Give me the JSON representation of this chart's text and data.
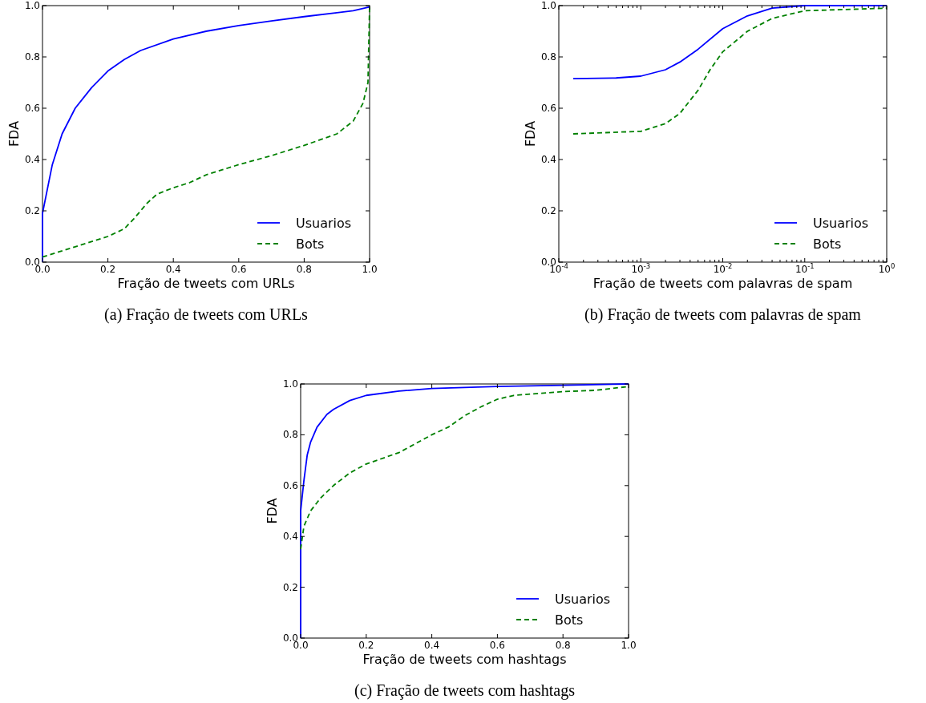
{
  "chart_data": [
    {
      "type": "line",
      "xlabel": "Fração de tweets com URLs",
      "ylabel": "FDA",
      "annotations": [
        "(a) Fração de tweets com URLs"
      ],
      "xlim": [
        0,
        1
      ],
      "ylim": [
        0,
        1
      ],
      "xticks": [
        {
          "value": 0,
          "label": "0.0"
        },
        {
          "value": 0.2,
          "label": "0.2"
        },
        {
          "value": 0.4,
          "label": "0.4"
        },
        {
          "value": 0.6,
          "label": "0.6"
        },
        {
          "value": 0.8,
          "label": "0.8"
        },
        {
          "value": 1,
          "label": "1.0"
        }
      ],
      "yticks": [
        {
          "value": 0,
          "label": "0.0"
        },
        {
          "value": 0.2,
          "label": "0.2"
        },
        {
          "value": 0.4,
          "label": "0.4"
        },
        {
          "value": 0.6,
          "label": "0.6"
        },
        {
          "value": 0.8,
          "label": "0.8"
        },
        {
          "value": 1,
          "label": "1.0"
        }
      ],
      "legend": "bottom right",
      "grid": false,
      "series": [
        {
          "name": "Usuarios",
          "color": "#0000ff",
          "line_style": "solid",
          "x": [
            0,
            0,
            0.03,
            0.06,
            0.1,
            0.15,
            0.2,
            0.25,
            0.3,
            0.4,
            0.5,
            0.6,
            0.7,
            0.8,
            0.9,
            0.95,
            1
          ],
          "values": [
            0,
            0.19,
            0.38,
            0.5,
            0.6,
            0.68,
            0.745,
            0.79,
            0.825,
            0.87,
            0.9,
            0.922,
            0.94,
            0.957,
            0.972,
            0.98,
            0.995
          ]
        },
        {
          "name": "Bots",
          "color": "#008000",
          "line_style": "dashed",
          "x": [
            0,
            0.05,
            0.1,
            0.15,
            0.2,
            0.25,
            0.28,
            0.32,
            0.35,
            0.4,
            0.45,
            0.5,
            0.6,
            0.7,
            0.8,
            0.9,
            0.95,
            0.98,
            0.995,
            1
          ],
          "values": [
            0.02,
            0.04,
            0.06,
            0.08,
            0.1,
            0.13,
            0.17,
            0.23,
            0.265,
            0.29,
            0.31,
            0.34,
            0.38,
            0.415,
            0.455,
            0.5,
            0.55,
            0.62,
            0.7,
            1
          ]
        }
      ]
    },
    {
      "type": "line",
      "xlabel": "Fração de tweets com palavras de spam",
      "ylabel": "FDA",
      "annotations": [
        "(b) Fração de tweets com palavras de spam"
      ],
      "log": "x",
      "xlim": [
        0.0001,
        1
      ],
      "ylim": [
        0,
        1
      ],
      "xticks": [
        {
          "value": 0.0001,
          "label": "10$^{-4}$"
        },
        {
          "value": 0.001,
          "label": "10$^{-3}$"
        },
        {
          "value": 0.01,
          "label": "10$^{-2}$"
        },
        {
          "value": 0.1,
          "label": "10$^{-1}$"
        },
        {
          "value": 1,
          "label": "10$^{0}$"
        }
      ],
      "yticks": [
        {
          "value": 0,
          "label": "0.0"
        },
        {
          "value": 0.2,
          "label": "0.2"
        },
        {
          "value": 0.4,
          "label": "0.4"
        },
        {
          "value": 0.6,
          "label": "0.6"
        },
        {
          "value": 0.8,
          "label": "0.8"
        },
        {
          "value": 1,
          "label": "1.0"
        }
      ],
      "legend": "bottom right",
      "grid": false,
      "series": [
        {
          "name": "Usuarios",
          "color": "#0000ff",
          "line_style": "solid",
          "x": [
            0.00015,
            0.0005,
            0.001,
            0.002,
            0.003,
            0.005,
            0.01,
            0.02,
            0.04,
            0.1,
            1
          ],
          "values": [
            0.715,
            0.718,
            0.725,
            0.75,
            0.78,
            0.83,
            0.91,
            0.96,
            0.99,
            1,
            1
          ]
        },
        {
          "name": "Bots",
          "color": "#008000",
          "line_style": "dashed",
          "x": [
            0.00015,
            0.001,
            0.002,
            0.003,
            0.005,
            0.007,
            0.01,
            0.02,
            0.04,
            0.1,
            1
          ],
          "values": [
            0.5,
            0.51,
            0.54,
            0.58,
            0.67,
            0.75,
            0.82,
            0.9,
            0.95,
            0.98,
            0.99
          ]
        }
      ]
    },
    {
      "type": "line",
      "xlabel": "Fração de tweets com hashtags",
      "ylabel": "FDA",
      "annotations": [
        "(c) Fração de tweets com hashtags"
      ],
      "xlim": [
        0,
        1
      ],
      "ylim": [
        0,
        1
      ],
      "xticks": [
        {
          "value": 0,
          "label": "0.0"
        },
        {
          "value": 0.2,
          "label": "0.2"
        },
        {
          "value": 0.4,
          "label": "0.4"
        },
        {
          "value": 0.6,
          "label": "0.6"
        },
        {
          "value": 0.8,
          "label": "0.8"
        },
        {
          "value": 1,
          "label": "1.0"
        }
      ],
      "yticks": [
        {
          "value": 0,
          "label": "0.0"
        },
        {
          "value": 0.2,
          "label": "0.2"
        },
        {
          "value": 0.4,
          "label": "0.4"
        },
        {
          "value": 0.6,
          "label": "0.6"
        },
        {
          "value": 0.8,
          "label": "0.8"
        },
        {
          "value": 1,
          "label": "1.0"
        }
      ],
      "legend": "bottom right",
      "grid": false,
      "series": [
        {
          "name": "Usuarios",
          "color": "#0000ff",
          "line_style": "solid",
          "x": [
            0,
            0,
            0.01,
            0.02,
            0.03,
            0.05,
            0.08,
            0.1,
            0.15,
            0.2,
            0.3,
            0.4,
            0.6,
            0.8,
            1
          ],
          "values": [
            0,
            0.5,
            0.62,
            0.72,
            0.77,
            0.83,
            0.88,
            0.9,
            0.935,
            0.955,
            0.972,
            0.982,
            0.99,
            0.995,
            1
          ]
        },
        {
          "name": "Bots",
          "color": "#008000",
          "line_style": "dashed",
          "x": [
            0,
            0.01,
            0.03,
            0.06,
            0.1,
            0.15,
            0.2,
            0.3,
            0.4,
            0.45,
            0.5,
            0.55,
            0.6,
            0.65,
            0.8,
            0.9,
            1
          ],
          "values": [
            0.35,
            0.44,
            0.5,
            0.55,
            0.6,
            0.65,
            0.685,
            0.73,
            0.8,
            0.83,
            0.875,
            0.91,
            0.94,
            0.955,
            0.97,
            0.975,
            0.99
          ]
        }
      ]
    }
  ]
}
